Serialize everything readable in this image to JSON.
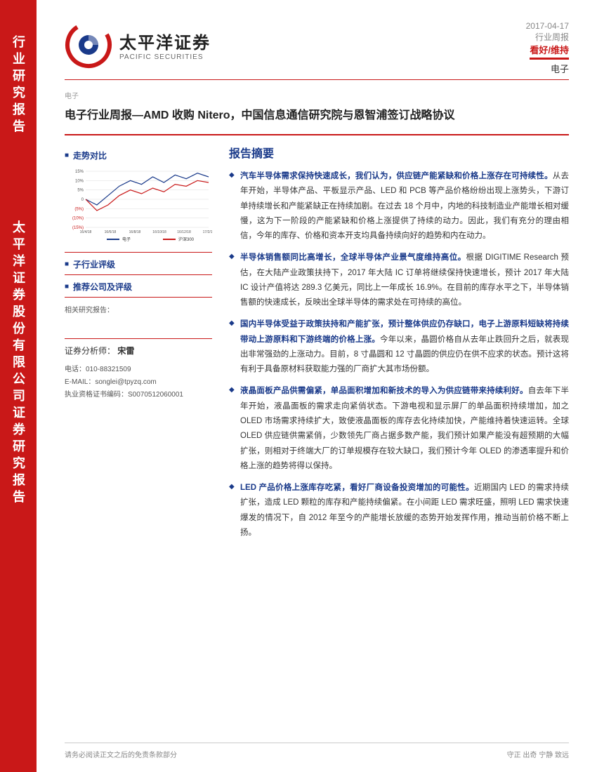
{
  "spine": {
    "label1": "行业研究报告",
    "label2": "太平洋证券股份有限公司证券研究报告"
  },
  "brand": {
    "zh": "太平洋证券",
    "en": "PACIFIC SECURITIES"
  },
  "meta": {
    "date": "2017-04-17",
    "doc_type": "行业周报",
    "rating": "看好/维持",
    "sector": "电子"
  },
  "small_label": "电子",
  "title": "电子行业周报—AMD 收购 Nitero，中国信息通信研究院与恩智浦签订战略协议",
  "sidebar": {
    "trend_label": "走势对比",
    "sub_rating_label": "子行业评级",
    "rec_label": "推荐公司及评级",
    "related_label": "相关研究报告：",
    "analyst_label": "证券分析师：",
    "analyst_name": "宋雷",
    "phone_label": "电话：",
    "phone": "010-88321509",
    "email_label": "E-MAIL：",
    "email": "songlei@tpyzq.com",
    "license_label": "执业资格证书编码：",
    "license": "S0070512060001"
  },
  "chart": {
    "y_ticks": [
      "15%",
      "10%",
      "5%",
      "0",
      "(5%)",
      "(10%)",
      "(15%)"
    ],
    "x_ticks": [
      "16/4/18",
      "16/6/18",
      "16/8/18",
      "16/10/18",
      "16/12/18",
      "17/2/18"
    ],
    "series": [
      {
        "name": "电子",
        "color": "#1a3a8a",
        "points": [
          0,
          -3,
          2,
          7,
          10,
          8,
          12,
          9,
          13,
          11,
          14,
          12
        ]
      },
      {
        "name": "沪深300",
        "color": "#c91818",
        "points": [
          0,
          -6,
          -3,
          2,
          5,
          3,
          6,
          4,
          8,
          7,
          10,
          9
        ]
      }
    ],
    "y_min": -15,
    "y_max": 15
  },
  "summary_title": "报告摘要",
  "bullets": [
    {
      "lead": "汽车半导体需求保持快速成长，我们认为，供应链产能紧缺和价格上涨存在可持续性。",
      "body": "从去年开始，半导体产品、平板显示产品、LED 和 PCB 等产品价格纷纷出现上涨势头，下游订单持续增长和产能紧缺正在持续加剧。在过去 18 个月中，内地的科技制造业产能增长相对缓慢，这为下一阶段的产能紧缺和价格上涨提供了持续的动力。因此，我们有充分的理由相信，今年的库存、价格和资本开支均具备持续向好的趋势和内在动力。"
    },
    {
      "lead": "半导体销售额同比高增长，全球半导体产业景气度维持高位。",
      "body": "根据 DIGITIME Research 预估，在大陆产业政策扶持下，2017 年大陆 IC 订单将继续保持快速增长，预计 2017 年大陆 IC 设计产值将达 289.3 亿美元，同比上一年成长 16.9%。在目前的库存水平之下，半导体销售额的快速成长，反映出全球半导体的需求处在可持续的高位。"
    },
    {
      "lead": "国内半导体受益于政策扶持和产能扩张，预计整体供应仍存缺口，电子上游原料短缺将持续带动上游原料和下游终端的价格上涨。",
      "body": "今年以来，晶圆价格自从去年止跌回升之后，就表现出非常强劲的上涨动力。目前，8 寸晶圆和 12 寸晶圆的供应仍在供不应求的状态。预计这将有利于具备原材料获取能力强的厂商扩大其市场份额。"
    },
    {
      "lead": "液晶面板产品供需偏紧，单品面积增加和新技术的导入为供应链带来持续利好。",
      "body": "自去年下半年开始，液晶面板的需求走向紧俏状态。下游电视和显示屏厂的单品面积持续增加，加之 OLED 市场需求持续扩大，致使液晶面板的库存去化持续加快，产能维持着快速运转。全球 OLED 供应链供需紧俏，少数领先厂商占据多数产能，我们预计如果产能没有超预期的大幅扩张，则相对于终端大厂的订单规模存在较大缺口，我们预计今年 OLED 的渗透率提升和价格上涨的趋势将得以保持。"
    },
    {
      "lead": "LED 产品价格上涨库存吃紧，看好厂商设备投资增加的可能性。",
      "body": "近期国内 LED 的需求持续扩张，造成 LED 颗粒的库存和产能持续偏紧。在小间距 LED 需求旺盛，照明 LED 需求快速爆发的情况下，自 2012 年至今的产能增长放缓的态势开始发挥作用，推动当前价格不断上扬。"
    }
  ],
  "footer": {
    "left": "请务必阅读正文之后的免责条款部分",
    "right": "守正 出奇 宁静 致远"
  }
}
